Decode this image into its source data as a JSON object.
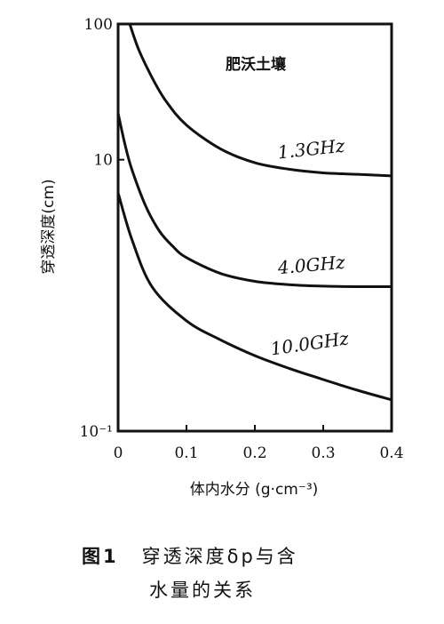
{
  "chart_data": {
    "type": "line",
    "annotation": "肥沃土壤",
    "ylabel": "穿透深度(cm)",
    "xlabel": "体内水分 (g·cm⁻³)",
    "xlim": [
      0,
      0.4
    ],
    "ylim": [
      0.1,
      100
    ],
    "yscale": "log",
    "grid": false,
    "x_ticks": [
      0,
      0.1,
      0.2,
      0.3,
      0.4
    ],
    "x_tick_labels": [
      "0",
      "0.1",
      "0.2",
      "0.3",
      "0.4"
    ],
    "y_ticks": [
      0.1,
      10,
      100
    ],
    "y_tick_labels": [
      "10⁻¹",
      "10",
      "100"
    ],
    "series": [
      {
        "name": "1.3GHz",
        "x": [
          0.017,
          0.03,
          0.05,
          0.07,
          0.1,
          0.15,
          0.2,
          0.25,
          0.3,
          0.35,
          0.4
        ],
        "y": [
          100,
          65,
          40,
          27,
          18,
          12,
          9.5,
          8.5,
          8.0,
          7.8,
          7.6
        ]
      },
      {
        "name": "4.0GHz",
        "x": [
          0,
          0.01,
          0.02,
          0.04,
          0.06,
          0.08,
          0.1,
          0.15,
          0.2,
          0.25,
          0.3,
          0.35,
          0.4
        ],
        "y": [
          22,
          13,
          8.5,
          4.6,
          3.0,
          2.3,
          1.9,
          1.45,
          1.27,
          1.2,
          1.17,
          1.16,
          1.16
        ]
      },
      {
        "name": "10.0GHz",
        "x": [
          0,
          0.02,
          0.05,
          0.1,
          0.15,
          0.2,
          0.25,
          0.3,
          0.35,
          0.4
        ],
        "y": [
          5.7,
          2.6,
          1.15,
          0.65,
          0.47,
          0.36,
          0.29,
          0.24,
          0.2,
          0.17
        ]
      }
    ]
  },
  "caption": {
    "figure_number": "图1",
    "line1": "穿透深度δp与含",
    "line2": "水量的关系"
  }
}
